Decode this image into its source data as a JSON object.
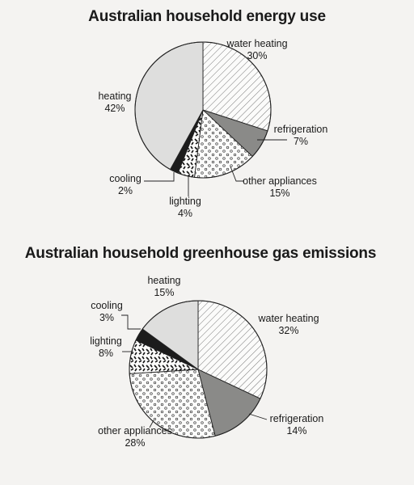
{
  "chart_data": [
    {
      "type": "pie",
      "title": "Australian household energy use",
      "slices": [
        {
          "name": "water heating",
          "value": 30,
          "label": "30%",
          "pattern": "hatch"
        },
        {
          "name": "refrigeration",
          "value": 7,
          "label": "7%",
          "pattern": "gray"
        },
        {
          "name": "other appliances",
          "value": 15,
          "label": "15%",
          "pattern": "dots"
        },
        {
          "name": "lighting",
          "value": 4,
          "label": "4%",
          "pattern": "dashes"
        },
        {
          "name": "cooling",
          "value": 2,
          "label": "2%",
          "pattern": "black"
        },
        {
          "name": "heating",
          "value": 42,
          "label": "42%",
          "pattern": "light"
        }
      ]
    },
    {
      "type": "pie",
      "title": "Australian household greenhouse gas emissions",
      "slices": [
        {
          "name": "water heating",
          "value": 32,
          "label": "32%",
          "pattern": "hatch"
        },
        {
          "name": "refrigeration",
          "value": 14,
          "label": "14%",
          "pattern": "gray"
        },
        {
          "name": "other appliances",
          "value": 28,
          "label": "28%",
          "pattern": "dots"
        },
        {
          "name": "lighting",
          "value": 8,
          "label": "8%",
          "pattern": "dashes"
        },
        {
          "name": "cooling",
          "value": 3,
          "label": "3%",
          "pattern": "black"
        },
        {
          "name": "heating",
          "value": 15,
          "label": "15%",
          "pattern": "light"
        }
      ]
    }
  ],
  "colors": {
    "background": "#f4f3f1",
    "light": "#dededd",
    "gray": "#8a8a88",
    "black": "#1c1c1c",
    "line": "#222222"
  }
}
